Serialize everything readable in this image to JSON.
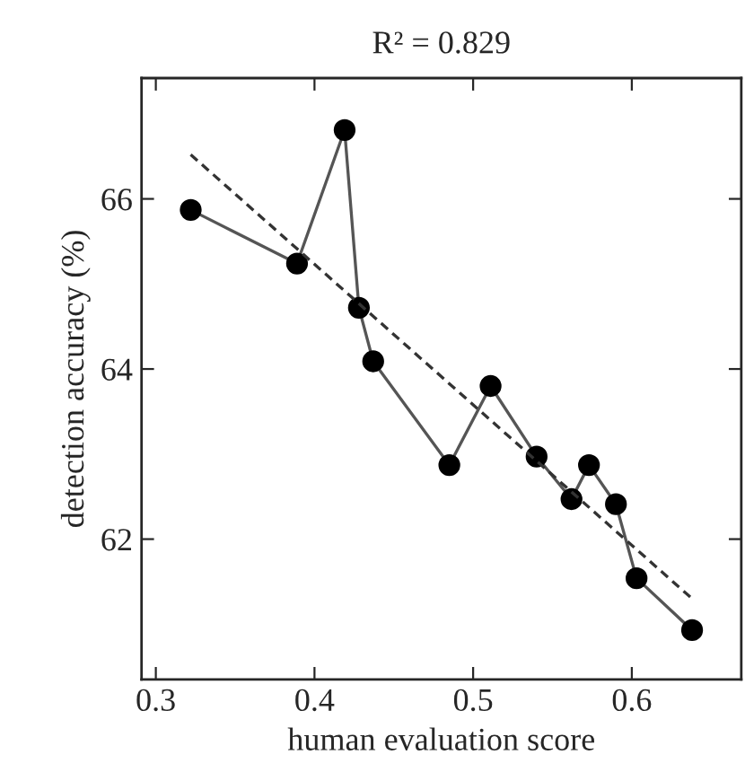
{
  "chart_data": {
    "type": "line",
    "title": "R² = 0.829",
    "xlabel": "human evaluation score",
    "ylabel": "detection accuracy (%)",
    "x": [
      0.322,
      0.389,
      0.419,
      0.428,
      0.437,
      0.485,
      0.511,
      0.54,
      0.562,
      0.573,
      0.59,
      0.603,
      0.638
    ],
    "series": [
      {
        "color": "#555555",
        "marker": "circle",
        "line_style": "solid",
        "values": [
          65.87,
          65.24,
          66.81,
          64.72,
          64.09,
          62.87,
          63.8,
          62.97,
          62.47,
          62.87,
          62.41,
          61.54,
          60.93
        ]
      },
      {
        "type": "line",
        "color": "#333333",
        "marker": "none",
        "line_style": "dashed",
        "x": [
          0.322,
          0.638
        ],
        "values": [
          66.52,
          61.3
        ]
      }
    ],
    "xlim": [
      0.291,
      0.669
    ],
    "ylim": [
      60.35,
      67.42
    ],
    "xticks": [
      0.3,
      0.4,
      0.5,
      0.6
    ],
    "yticks": [
      62,
      64,
      66
    ],
    "grid": false
  }
}
